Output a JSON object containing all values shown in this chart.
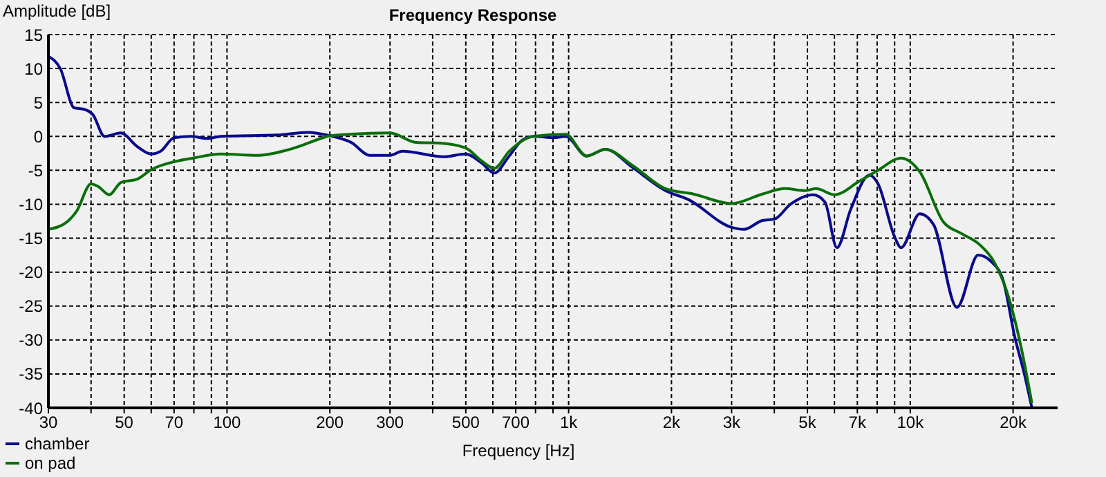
{
  "chart_data": {
    "type": "line",
    "title": "Frequency Response",
    "xlabel": "Frequency [Hz]",
    "ylabel": "Amplitude [dB]",
    "log": "x",
    "grid": true,
    "legend": "bottom left",
    "marker": "none",
    "line_style": "solid",
    "xlim": [
      30,
      27000
    ],
    "ylim": [
      -40,
      15
    ],
    "xticks": [
      30,
      {
        "value": 40,
        "label": null
      },
      50,
      {
        "value": 60,
        "label": null
      },
      70,
      {
        "value": 80,
        "label": null
      },
      {
        "value": 90,
        "label": null
      },
      100,
      200,
      300,
      {
        "value": 400,
        "label": null
      },
      500,
      {
        "value": 600,
        "label": null
      },
      700,
      {
        "value": 800,
        "label": null
      },
      {
        "value": 900,
        "label": null
      },
      {
        "value": 1000,
        "label": "1k"
      },
      {
        "value": 2000,
        "label": "2k"
      },
      {
        "value": 3000,
        "label": "3k"
      },
      {
        "value": 4000,
        "label": null
      },
      {
        "value": 5000,
        "label": "5k"
      },
      {
        "value": 6000,
        "label": null
      },
      {
        "value": 7000,
        "label": "7k"
      },
      {
        "value": 8000,
        "label": null
      },
      {
        "value": 9000,
        "label": null
      },
      {
        "value": 10000,
        "label": "10k"
      },
      {
        "value": 20000,
        "label": "20k"
      }
    ],
    "yticks": [
      15,
      10,
      5,
      0,
      -5,
      -10,
      -15,
      -20,
      -25,
      -30,
      -35,
      -40
    ],
    "series": [
      {
        "name": "chamber",
        "color": "#0a0a8c",
        "x": [
          30,
          32.5,
          35.7,
          38.1,
          40.5,
          43.8,
          48.9,
          54.6,
          60,
          63.9,
          70,
          78.3,
          87.4,
          96,
          140,
          172,
          200,
          231,
          262,
          300,
          326,
          432,
          499,
          556,
          606,
          670,
          734,
          796,
          905,
          980,
          1130,
          1280,
          1540,
          1920,
          2240,
          3000,
          3260,
          3690,
          4000,
          4460,
          5200,
          5630,
          6100,
          6700,
          7600,
          8050,
          9000,
          9400,
          10660,
          11700,
          13700,
          15800,
          17300,
          18700,
          20200,
          21600,
          22700
        ],
        "values": [
          11.8,
          10,
          4.2,
          4,
          3.2,
          0,
          0.5,
          -1.5,
          -2.6,
          -2.2,
          -0.2,
          0,
          -0.3,
          0,
          0.2,
          0.6,
          0.1,
          -0.9,
          -2.8,
          -2.8,
          -2.2,
          -3,
          -2.6,
          -3.9,
          -5.4,
          -2.9,
          -0.5,
          0,
          -0.2,
          0,
          -2.9,
          -1.9,
          -4.6,
          -8,
          -9.3,
          -13.4,
          -13.7,
          -12.4,
          -12.2,
          -10,
          -8.6,
          -9.7,
          -16.4,
          -10.7,
          -5.7,
          -7,
          -14.8,
          -16.4,
          -11.4,
          -13,
          -25.2,
          -17.5,
          -18.5,
          -21.2,
          -29.4,
          -35.1,
          -40
        ]
      },
      {
        "name": "on pad",
        "color": "#0a6e0a",
        "x": [
          30,
          33.6,
          36.3,
          40,
          42,
          45.2,
          48.9,
          54.6,
          60,
          68,
          79.5,
          96,
          123,
          153,
          191,
          200,
          300,
          358,
          420,
          499,
          556,
          606,
          670,
          786,
          980,
          1130,
          1280,
          1540,
          1920,
          2320,
          3000,
          3690,
          4300,
          4900,
          5300,
          6000,
          7100,
          8050,
          9400,
          10660,
          12500,
          14100,
          16000,
          17600,
          19300,
          21200,
          22700
        ],
        "values": [
          -13.7,
          -12.8,
          -11,
          -7,
          -7.4,
          -8.6,
          -6.8,
          -6.3,
          -4.9,
          -3.9,
          -3.2,
          -2.6,
          -2.8,
          -1.9,
          -0.2,
          0.1,
          0.5,
          -0.9,
          -1,
          -1.7,
          -3.6,
          -4.7,
          -2.2,
          0,
          0.3,
          -2.9,
          -1.9,
          -4.3,
          -7.7,
          -8.5,
          -9.9,
          -8.5,
          -7.7,
          -8,
          -7.7,
          -8.6,
          -6.6,
          -5,
          -3.2,
          -5.2,
          -12.6,
          -14.3,
          -16,
          -18.5,
          -23.3,
          -31.5,
          -39.3
        ]
      }
    ]
  }
}
